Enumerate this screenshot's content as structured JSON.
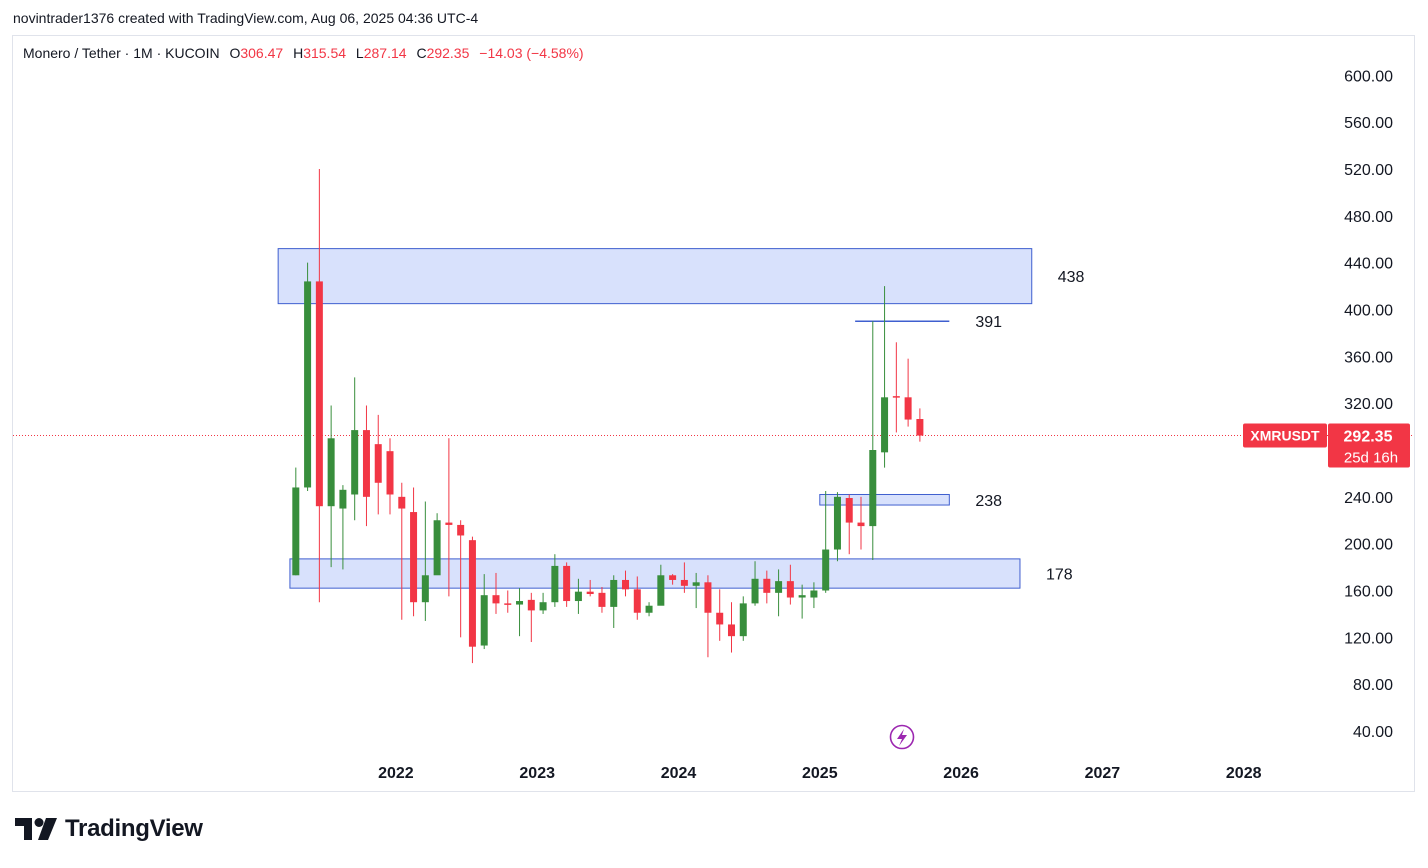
{
  "header": {
    "caption": "novintrader1376 created with TradingView.com, Aug 06, 2025 04:36 UTC-4"
  },
  "legend": {
    "symbol": "Monero / Tether · 1M · KUCOIN",
    "o_label": "O",
    "o_value": "306.47",
    "h_label": "H",
    "h_value": "315.54",
    "l_label": "L",
    "l_value": "287.14",
    "c_label": "C",
    "c_value": "292.35",
    "change": "−14.03 (−4.58%)"
  },
  "price_badge": {
    "ticker": "XMRUSDT",
    "price": "292.35",
    "countdown": "25d 16h"
  },
  "footer": {
    "brand": "TradingView"
  },
  "colors": {
    "up": "#388e3c",
    "down": "#f23645",
    "zone_fill": "#d1dcfb",
    "zone_stroke": "#3f5fcf",
    "badge": "#f23645",
    "alert_icon": "#9c27b0"
  },
  "icons": {
    "alert": "lightning-bolt-icon",
    "logo": "tradingview-logo-icon"
  },
  "chart_data": {
    "type": "candlestick",
    "interval": "1M",
    "ylim": [
      20,
      620
    ],
    "y_ticks": [
      "600.00",
      "560.00",
      "520.00",
      "480.00",
      "440.00",
      "400.00",
      "360.00",
      "320.00",
      "240.00",
      "200.00",
      "160.00",
      "120.00",
      "80.00",
      "40.00"
    ],
    "x_ticks": [
      "2022",
      "2023",
      "2024",
      "2025",
      "2026",
      "2027",
      "2028"
    ],
    "last_price": 292.35,
    "candles": [
      {
        "t": "2021-04",
        "o": 173,
        "h": 265,
        "l": 173,
        "c": 248
      },
      {
        "t": "2021-05",
        "o": 248,
        "h": 440,
        "l": 245,
        "c": 424
      },
      {
        "t": "2021-06",
        "o": 424,
        "h": 520,
        "l": 150,
        "c": 232
      },
      {
        "t": "2021-07",
        "o": 232,
        "h": 318,
        "l": 180,
        "c": 290
      },
      {
        "t": "2021-08",
        "o": 230,
        "h": 250,
        "l": 178,
        "c": 246
      },
      {
        "t": "2021-09",
        "o": 242,
        "h": 342,
        "l": 220,
        "c": 297
      },
      {
        "t": "2021-10",
        "o": 297,
        "h": 318,
        "l": 215,
        "c": 240
      },
      {
        "t": "2021-11",
        "o": 285,
        "h": 310,
        "l": 225,
        "c": 252
      },
      {
        "t": "2021-12",
        "o": 279,
        "h": 290,
        "l": 225,
        "c": 242
      },
      {
        "t": "2022-01",
        "o": 240,
        "h": 252,
        "l": 135,
        "c": 230
      },
      {
        "t": "2022-02",
        "o": 227,
        "h": 248,
        "l": 138,
        "c": 150
      },
      {
        "t": "2022-03",
        "o": 150,
        "h": 236,
        "l": 134,
        "c": 173
      },
      {
        "t": "2022-04",
        "o": 173,
        "h": 226,
        "l": 175,
        "c": 220
      },
      {
        "t": "2022-05",
        "o": 218,
        "h": 290,
        "l": 155,
        "c": 216
      },
      {
        "t": "2022-06",
        "o": 216,
        "h": 220,
        "l": 120,
        "c": 207
      },
      {
        "t": "2022-07",
        "o": 203,
        "h": 206,
        "l": 98,
        "c": 112
      },
      {
        "t": "2022-08",
        "o": 113,
        "h": 174,
        "l": 110,
        "c": 156
      },
      {
        "t": "2022-09",
        "o": 156,
        "h": 175,
        "l": 140,
        "c": 149
      },
      {
        "t": "2022-10",
        "o": 149,
        "h": 160,
        "l": 141,
        "c": 148
      },
      {
        "t": "2022-11",
        "o": 148,
        "h": 162,
        "l": 121,
        "c": 151
      },
      {
        "t": "2022-12",
        "o": 152,
        "h": 158,
        "l": 116,
        "c": 143
      },
      {
        "t": "2023-01",
        "o": 143,
        "h": 158,
        "l": 140,
        "c": 150
      },
      {
        "t": "2023-02",
        "o": 150,
        "h": 191,
        "l": 146,
        "c": 181
      },
      {
        "t": "2023-03",
        "o": 181,
        "h": 184,
        "l": 146,
        "c": 151
      },
      {
        "t": "2023-04",
        "o": 151,
        "h": 170,
        "l": 140,
        "c": 159
      },
      {
        "t": "2023-05",
        "o": 159,
        "h": 169,
        "l": 155,
        "c": 157
      },
      {
        "t": "2023-06",
        "o": 158,
        "h": 163,
        "l": 141,
        "c": 146
      },
      {
        "t": "2023-07",
        "o": 146,
        "h": 173,
        "l": 128,
        "c": 169
      },
      {
        "t": "2023-08",
        "o": 169,
        "h": 177,
        "l": 155,
        "c": 161
      },
      {
        "t": "2023-09",
        "o": 161,
        "h": 172,
        "l": 135,
        "c": 141
      },
      {
        "t": "2023-10",
        "o": 141,
        "h": 150,
        "l": 138,
        "c": 147
      },
      {
        "t": "2023-11",
        "o": 147,
        "h": 182,
        "l": 148,
        "c": 173
      },
      {
        "t": "2023-12",
        "o": 173,
        "h": 174,
        "l": 165,
        "c": 169
      },
      {
        "t": "2024-01",
        "o": 169,
        "h": 184,
        "l": 158,
        "c": 164
      },
      {
        "t": "2024-02",
        "o": 164,
        "h": 175,
        "l": 145,
        "c": 167
      },
      {
        "t": "2024-03",
        "o": 167,
        "h": 173,
        "l": 103,
        "c": 141
      },
      {
        "t": "2024-04",
        "o": 141,
        "h": 161,
        "l": 117,
        "c": 131
      },
      {
        "t": "2024-05",
        "o": 131,
        "h": 150,
        "l": 107,
        "c": 121
      },
      {
        "t": "2024-06",
        "o": 121,
        "h": 155,
        "l": 117,
        "c": 149
      },
      {
        "t": "2024-07",
        "o": 149,
        "h": 185,
        "l": 147,
        "c": 170
      },
      {
        "t": "2024-08",
        "o": 170,
        "h": 177,
        "l": 149,
        "c": 158
      },
      {
        "t": "2024-09",
        "o": 158,
        "h": 178,
        "l": 138,
        "c": 168
      },
      {
        "t": "2024-10",
        "o": 168,
        "h": 182,
        "l": 148,
        "c": 154
      },
      {
        "t": "2024-11",
        "o": 154,
        "h": 165,
        "l": 136,
        "c": 156
      },
      {
        "t": "2024-12",
        "o": 154,
        "h": 167,
        "l": 145,
        "c": 160
      },
      {
        "t": "2025-01",
        "o": 160,
        "h": 245,
        "l": 158,
        "c": 195
      },
      {
        "t": "2025-02",
        "o": 195,
        "h": 244,
        "l": 185,
        "c": 240
      },
      {
        "t": "2025-03",
        "o": 239,
        "h": 242,
        "l": 191,
        "c": 218
      },
      {
        "t": "2025-04",
        "o": 218,
        "h": 240,
        "l": 195,
        "c": 215
      },
      {
        "t": "2025-05",
        "o": 215,
        "h": 390,
        "l": 186,
        "c": 280
      },
      {
        "t": "2025-06",
        "o": 278,
        "h": 420,
        "l": 265,
        "c": 325
      },
      {
        "t": "2025-07",
        "o": 326,
        "h": 372,
        "l": 295,
        "c": 325
      },
      {
        "t": "2025-08",
        "o": 325,
        "h": 358,
        "l": 300,
        "c": 306
      },
      {
        "t": "2025-09",
        "o": 306.47,
        "h": 315.54,
        "l": 287.14,
        "c": 292.35
      }
    ],
    "annotations": [
      {
        "type": "zone",
        "label": "438",
        "from": "2021-03",
        "to": "2026-07",
        "low": 405,
        "high": 452
      },
      {
        "type": "level",
        "label": "391",
        "from": "2025-04",
        "to": "2025-12",
        "value": 390
      },
      {
        "type": "zone",
        "label": "238",
        "from": "2025-01",
        "to": "2025-12",
        "low": 233,
        "high": 242
      },
      {
        "type": "zone",
        "label": "178",
        "from": "2021-04",
        "to": "2026-06",
        "low": 162,
        "high": 187
      }
    ]
  }
}
